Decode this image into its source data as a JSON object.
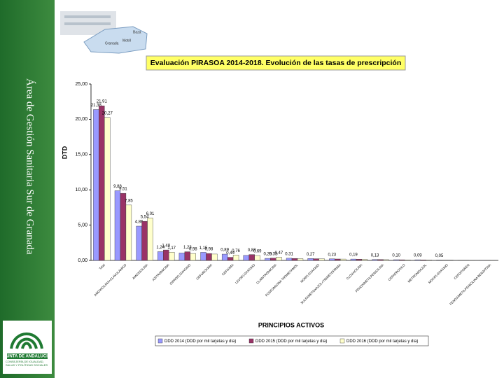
{
  "sidebar": {
    "text": "Área de Gestión Sanitaria Sur de Granada"
  },
  "logo": {
    "name": "JUNTA DE ANDALUCIA",
    "subtitle": "CONSEJERÍA DE IGUALDAD, SALUD Y POLÍTICAS SOCIALES"
  },
  "map": {
    "labels": [
      "Granada",
      "Motril",
      "Baza"
    ]
  },
  "chart_data": {
    "type": "bar",
    "title": "Evaluación PIRASOA 2014-2018. Evolución de las tasas de prescripción",
    "ylabel": "DTD",
    "xlabel": "PRINCIPIOS ACTIVOS",
    "categories": [
      "Total",
      "AMOXICILINA+CLAVULANICO",
      "AMOXICILINA",
      "AZITROMICINA",
      "CIPROFLOXACINO",
      "CEFUROXIMA",
      "CEFIXIMA",
      "LEVOFLOXACINO",
      "CLARITROMICINA",
      "FOSFOMICINA TROMETAMOL",
      "NORFLOXACINO",
      "SULFAMETOXAZOL+TRIMETOPRIMA",
      "CLOXACILINA",
      "FENOXIMETILPENICILINA",
      "CEFADROXILO",
      "METRONIDAZOL",
      "MOXIFLOXACINO",
      "CEFDITOREN",
      "FENOXIMETILPENICILINA BENZATINA"
    ],
    "series": [
      {
        "name": "DDD 2014 (DDD por mil tarjetas y día)",
        "color": "#9999ff",
        "values": [
          21.38,
          9.88,
          4.86,
          1.24,
          1.05,
          1.15,
          0.89,
          0.71,
          0.29,
          0.31,
          0.27,
          0.23,
          0.19,
          0.13,
          0.1,
          0.09,
          0.05,
          0.02,
          0.01
        ],
        "value_labels": [
          "21,38",
          "9,88",
          "4,86",
          "1,24",
          null,
          "1,15",
          "0,89",
          null,
          "0,29",
          "0,31",
          "0,27",
          "0,23",
          "0,19",
          "0,13",
          "0,10",
          "0,09",
          "0,05",
          null,
          null
        ]
      },
      {
        "name": "DDD 2015 (DDD por mil tarjetas y día)",
        "color": "#993366",
        "values": [
          21.91,
          9.51,
          5.54,
          1.48,
          1.23,
          0.98,
          0.44,
          0.83,
          0.33,
          0.28,
          0.24,
          0.2,
          0.17,
          0.12,
          0.09,
          0.07,
          0.04,
          0.02,
          0.01
        ],
        "value_labels": [
          "21,91",
          "9,51",
          "5,54",
          "1,48",
          "1,23",
          "0,98",
          "0,44",
          "0,83",
          "0,33",
          null,
          null,
          null,
          null,
          null,
          null,
          null,
          null,
          null,
          null
        ]
      },
      {
        "name": "DDD 2016 (DDD por mil tarjetas y día)",
        "color": "#ffffcc",
        "values": [
          20.27,
          7.85,
          6.01,
          1.17,
          0.98,
          0.9,
          0.76,
          0.69,
          0.47,
          0.25,
          0.22,
          0.19,
          0.15,
          0.11,
          0.08,
          0.06,
          0.04,
          0.01,
          0.01
        ],
        "value_labels": [
          "20,27",
          "7,85",
          "6,01",
          "1,17",
          "0,98",
          null,
          "0,76",
          "0,69",
          "0,47",
          null,
          null,
          null,
          null,
          null,
          null,
          null,
          null,
          null,
          null
        ]
      }
    ],
    "ylim": [
      0,
      25
    ],
    "yticks": [
      {
        "value": 0,
        "label": "0,00"
      },
      {
        "value": 5,
        "label": "5,00"
      },
      {
        "value": 10,
        "label": "10,00"
      },
      {
        "value": 15,
        "label": "15,00"
      },
      {
        "value": 20,
        "label": "20,00"
      },
      {
        "value": 25,
        "label": "25,00"
      }
    ],
    "grid": false
  }
}
